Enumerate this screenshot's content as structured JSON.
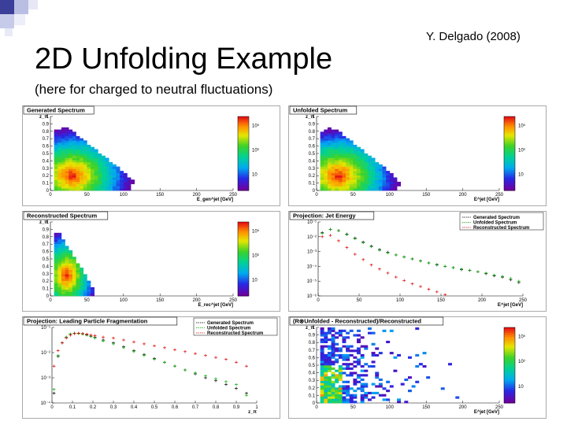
{
  "slide": {
    "title": "2D Unfolding Example",
    "subtitle": "(here for charged to neutral fluctuations)",
    "credit": "Y. Delgado (2008)"
  },
  "chart_data": [
    {
      "type": "heatmap",
      "title": "Generated Spectrum",
      "xlabel": "E_gen^jet [GeV]",
      "ylabel": "z_π",
      "x_ticks": [
        "0",
        "50",
        "100",
        "150",
        "200",
        "250"
      ],
      "y_ticks": [
        "0",
        "0.1",
        "0.2",
        "0.3",
        "0.4",
        "0.5",
        "0.6",
        "0.7",
        "0.8",
        "0.9",
        "1"
      ],
      "colorbar_ticks": [
        "10⁵",
        "10³",
        "10"
      ],
      "xlim": [
        0,
        250
      ],
      "ylim": [
        0,
        1
      ],
      "ridge": {
        "slope": 0.0055,
        "width": 25
      },
      "fill": "triangle"
    },
    {
      "type": "heatmap",
      "title": "Unfolded Spectrum",
      "xlabel": "E^jet [GeV]",
      "ylabel": "z_π",
      "x_ticks": [
        "0",
        "50",
        "100",
        "150",
        "200",
        "250"
      ],
      "y_ticks": [
        "0",
        "0.1",
        "0.2",
        "0.3",
        "0.4",
        "0.5",
        "0.6",
        "0.7",
        "0.8",
        "0.9",
        "1"
      ],
      "colorbar_ticks": [
        "10⁵",
        "10³",
        "10"
      ],
      "xlim": [
        0,
        250
      ],
      "ylim": [
        0,
        1
      ],
      "ridge": {
        "slope": 0.0055,
        "width": 25
      },
      "fill": "triangle"
    },
    {
      "type": "heatmap",
      "title": "Reconstructed Spectrum",
      "xlabel": "E_rec^jet [GeV]",
      "ylabel": "z_π",
      "x_ticks": [
        "0",
        "50",
        "100",
        "150",
        "200",
        "250"
      ],
      "y_ticks": [
        "0",
        "0.1",
        "0.2",
        "0.3",
        "0.4",
        "0.5",
        "0.6",
        "0.7",
        "0.8",
        "0.9",
        "1"
      ],
      "colorbar_ticks": [
        "10⁵",
        "10³",
        "10"
      ],
      "xlim": [
        0,
        250
      ],
      "ylim": [
        0,
        1
      ],
      "ridge": {
        "slope": 0.018,
        "width": 12
      },
      "fill": "narrow"
    },
    {
      "type": "line",
      "title": "Projection: Jet Energy",
      "xlabel": "E^jet [GeV]",
      "x_ticks": [
        "0",
        "50",
        "100",
        "150",
        "200",
        "250"
      ],
      "y_ticks": [
        "10⁻⁶",
        "10⁻⁵",
        "10⁻⁴",
        "10⁻³",
        "10⁻²",
        "10⁻¹"
      ],
      "xlim": [
        0,
        250
      ],
      "ylim_log10": [
        -6,
        -0.5
      ],
      "legend": [
        "Generated Spectrum",
        "Unfolded Spectrum",
        "Reconstructed Spectrum"
      ],
      "series": [
        {
          "name": "Generated Spectrum",
          "color": "#000000",
          "x": [
            5,
            15,
            25,
            35,
            45,
            55,
            65,
            75,
            85,
            95,
            105,
            115,
            125,
            135,
            145,
            155,
            165,
            175,
            185,
            195,
            205,
            215,
            225,
            235,
            245
          ],
          "log10y": [
            -1.3,
            -1.05,
            -1.15,
            -1.4,
            -1.7,
            -2.0,
            -2.3,
            -2.55,
            -2.75,
            -2.95,
            -3.1,
            -3.25,
            -3.4,
            -3.55,
            -3.7,
            -3.8,
            -3.9,
            -4.05,
            -4.1,
            -4.2,
            -4.35,
            -4.5,
            -4.6,
            -4.8,
            -5.0
          ]
        },
        {
          "name": "Unfolded Spectrum",
          "color": "#00aa00",
          "x": [
            5,
            15,
            25,
            35,
            45,
            55,
            65,
            75,
            85,
            95,
            105,
            115,
            125,
            135,
            145,
            155,
            165,
            175,
            185,
            195,
            205,
            215,
            225,
            235,
            245
          ],
          "log10y": [
            -1.35,
            -1.05,
            -1.15,
            -1.45,
            -1.75,
            -2.05,
            -2.35,
            -2.6,
            -2.8,
            -2.95,
            -3.1,
            -3.25,
            -3.4,
            -3.55,
            -3.65,
            -3.8,
            -3.9,
            -4.0,
            -4.1,
            -4.2,
            -4.3,
            -4.45,
            -4.55,
            -4.7,
            -4.9
          ]
        },
        {
          "name": "Reconstructed Spectrum",
          "color": "#dd0000",
          "x": [
            5,
            15,
            25,
            35,
            45,
            55,
            65,
            75,
            85,
            95,
            105,
            115,
            125,
            135,
            145,
            155
          ],
          "log10y": [
            -1.6,
            -1.5,
            -1.9,
            -2.4,
            -2.9,
            -3.3,
            -3.7,
            -4.0,
            -4.3,
            -4.6,
            -4.85,
            -5.1,
            -5.3,
            -5.5,
            -5.7,
            -5.9
          ]
        }
      ]
    },
    {
      "type": "line",
      "title": "Projection: Leading Particle Fragmentation",
      "xlabel": "z_π",
      "x_ticks": [
        "0",
        "0.1",
        "0.2",
        "0.3",
        "0.4",
        "0.5",
        "0.6",
        "0.7",
        "0.8",
        "0.9",
        "1"
      ],
      "y_ticks": [
        "10⁻⁴",
        "10⁻³",
        "10⁻²",
        "10⁻¹"
      ],
      "xlim": [
        0,
        1
      ],
      "ylim_log10": [
        -4.7,
        -0.8
      ],
      "legend": [
        "Generated Spectrum",
        "Unfolded Spectrum",
        "Reconstructed Spectrum"
      ],
      "series": [
        {
          "name": "Generated Spectrum",
          "color": "#000000",
          "x": [
            0.01,
            0.03,
            0.05,
            0.07,
            0.09,
            0.11,
            0.13,
            0.15,
            0.17,
            0.19,
            0.21,
            0.25,
            0.3,
            0.35,
            0.4,
            0.45,
            0.5,
            0.55,
            0.6,
            0.65,
            0.7,
            0.75,
            0.8,
            0.85,
            0.9,
            0.95
          ],
          "log10y": [
            -4.2,
            -2.3,
            -1.6,
            -1.3,
            -1.15,
            -1.1,
            -1.1,
            -1.12,
            -1.18,
            -1.25,
            -1.3,
            -1.45,
            -1.6,
            -1.8,
            -2.0,
            -2.2,
            -2.4,
            -2.6,
            -2.8,
            -3.0,
            -3.2,
            -3.4,
            -3.55,
            -3.75,
            -3.95,
            -4.2
          ]
        },
        {
          "name": "Unfolded Spectrum",
          "color": "#00aa00",
          "x": [
            0.01,
            0.03,
            0.05,
            0.07,
            0.09,
            0.11,
            0.13,
            0.15,
            0.17,
            0.19,
            0.21,
            0.25,
            0.3,
            0.35,
            0.4,
            0.45,
            0.5,
            0.55,
            0.6,
            0.65,
            0.7,
            0.75,
            0.8,
            0.85,
            0.9,
            0.95
          ],
          "log10y": [
            -4.0,
            -2.25,
            -1.6,
            -1.3,
            -1.15,
            -1.1,
            -1.12,
            -1.15,
            -1.2,
            -1.27,
            -1.35,
            -1.5,
            -1.65,
            -1.85,
            -2.05,
            -2.25,
            -2.45,
            -2.6,
            -2.8,
            -3.0,
            -3.15,
            -3.3,
            -3.45,
            -3.6,
            -3.75,
            -4.3
          ]
        },
        {
          "name": "Reconstructed Spectrum",
          "color": "#dd0000",
          "x": [
            0.01,
            0.03,
            0.05,
            0.07,
            0.09,
            0.11,
            0.13,
            0.15,
            0.17,
            0.19,
            0.21,
            0.25,
            0.3,
            0.35,
            0.4,
            0.45,
            0.5,
            0.55,
            0.6,
            0.65,
            0.7,
            0.75,
            0.8,
            0.85,
            0.9,
            0.95
          ],
          "log10y": [
            -2.8,
            -2.0,
            -1.6,
            -1.35,
            -1.2,
            -1.12,
            -1.1,
            -1.12,
            -1.15,
            -1.2,
            -1.22,
            -1.3,
            -1.35,
            -1.45,
            -1.55,
            -1.65,
            -1.75,
            -1.85,
            -1.95,
            -2.05,
            -2.15,
            -2.25,
            -2.35,
            -2.45,
            -2.6,
            -2.8
          ]
        }
      ]
    },
    {
      "type": "heatmap",
      "title": "(R⊗Unfolded - Reconstructed)/Reconstructed",
      "xlabel": "E^jet [GeV]",
      "ylabel": "z_π",
      "x_ticks": [
        "0",
        "50",
        "100",
        "150",
        "200",
        "250"
      ],
      "y_ticks": [
        "0",
        "0.1",
        "0.2",
        "0.3",
        "0.4",
        "0.5",
        "0.6",
        "0.7",
        "0.8",
        "0.9",
        "1"
      ],
      "colorbar_ticks": [
        "10⁵",
        "10³",
        "10"
      ],
      "xlim": [
        0,
        250
      ],
      "ylim": [
        0,
        1
      ],
      "fill": "scatter"
    }
  ]
}
